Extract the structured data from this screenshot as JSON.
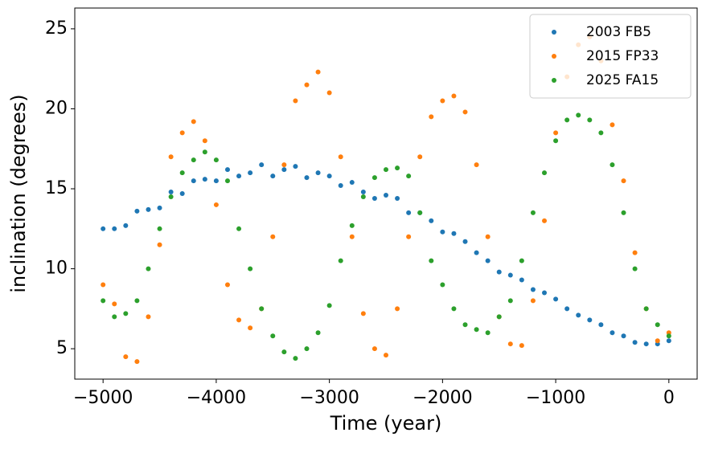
{
  "chart_data": {
    "type": "scatter",
    "xlabel": "Time (year)",
    "ylabel": "inclination (degrees)",
    "x": [
      -5000,
      -4900,
      -4800,
      -4700,
      -4600,
      -4500,
      -4400,
      -4300,
      -4200,
      -4100,
      -4000,
      -3900,
      -3800,
      -3700,
      -3600,
      -3500,
      -3400,
      -3300,
      -3200,
      -3100,
      -3000,
      -2900,
      -2800,
      -2700,
      -2600,
      -2500,
      -2400,
      -2300,
      -2200,
      -2100,
      -2000,
      -1900,
      -1800,
      -1700,
      -1600,
      -1500,
      -1400,
      -1300,
      -1200,
      -1100,
      -1000,
      -900,
      -800,
      -700,
      -600,
      -500,
      -400,
      -300,
      -200,
      -100,
      0
    ],
    "series": [
      {
        "name": "2003 FB5",
        "color": "#1f77b4",
        "values": [
          12.5,
          12.5,
          12.7,
          13.6,
          13.7,
          13.8,
          14.8,
          14.7,
          15.5,
          15.6,
          15.5,
          16.2,
          15.8,
          16.0,
          16.5,
          15.8,
          16.2,
          16.4,
          15.7,
          16.0,
          15.8,
          15.2,
          15.4,
          14.8,
          14.4,
          14.6,
          14.4,
          13.5,
          13.5,
          13.0,
          12.3,
          12.2,
          11.7,
          11.0,
          10.5,
          9.8,
          9.6,
          9.3,
          8.7,
          8.5,
          8.1,
          7.5,
          7.1,
          6.8,
          6.5,
          6.0,
          5.8,
          5.4,
          5.3,
          5.3,
          5.5
        ]
      },
      {
        "name": "2015 FP33",
        "color": "#ff7f0e",
        "values": [
          9.0,
          7.8,
          4.5,
          4.2,
          7.0,
          11.5,
          17.0,
          18.5,
          19.2,
          18.0,
          14.0,
          9.0,
          6.8,
          6.3,
          7.5,
          12.0,
          16.5,
          20.5,
          21.5,
          22.3,
          21.0,
          17.0,
          12.0,
          7.2,
          5.0,
          4.6,
          7.5,
          12.0,
          17.0,
          19.5,
          20.5,
          20.8,
          19.8,
          16.5,
          12.0,
          7.0,
          5.3,
          5.2,
          8.0,
          13.0,
          18.5,
          22.0,
          24.0,
          24.5,
          23.0,
          19.0,
          15.5,
          11.0,
          7.5,
          5.5,
          6.0
        ]
      },
      {
        "name": "2025 FA15",
        "color": "#2ca02c",
        "values": [
          8.0,
          7.0,
          7.2,
          8.0,
          10.0,
          12.5,
          14.5,
          16.0,
          16.8,
          17.3,
          16.8,
          15.5,
          12.5,
          10.0,
          7.5,
          5.8,
          4.8,
          4.4,
          5.0,
          6.0,
          7.7,
          10.5,
          12.7,
          14.5,
          15.7,
          16.2,
          16.3,
          15.8,
          13.5,
          10.5,
          9.0,
          7.5,
          6.5,
          6.2,
          6.0,
          7.0,
          8.0,
          10.5,
          13.5,
          16.0,
          18.0,
          19.3,
          19.6,
          19.3,
          18.5,
          16.5,
          13.5,
          10.0,
          7.5,
          6.5,
          5.8
        ]
      }
    ],
    "xlim": [
      -5250,
      250
    ],
    "xticks": [
      {
        "value": -5000,
        "label": "−5000"
      },
      {
        "value": -4000,
        "label": "−4000"
      },
      {
        "value": -3000,
        "label": "−3000"
      },
      {
        "value": -2000,
        "label": "−2000"
      },
      {
        "value": -1000,
        "label": "−1000"
      },
      0
    ],
    "ylim": [
      3.1,
      26.3
    ],
    "yticks": [
      5,
      10,
      15,
      20,
      25
    ],
    "grid": false,
    "legend": "upper right"
  }
}
